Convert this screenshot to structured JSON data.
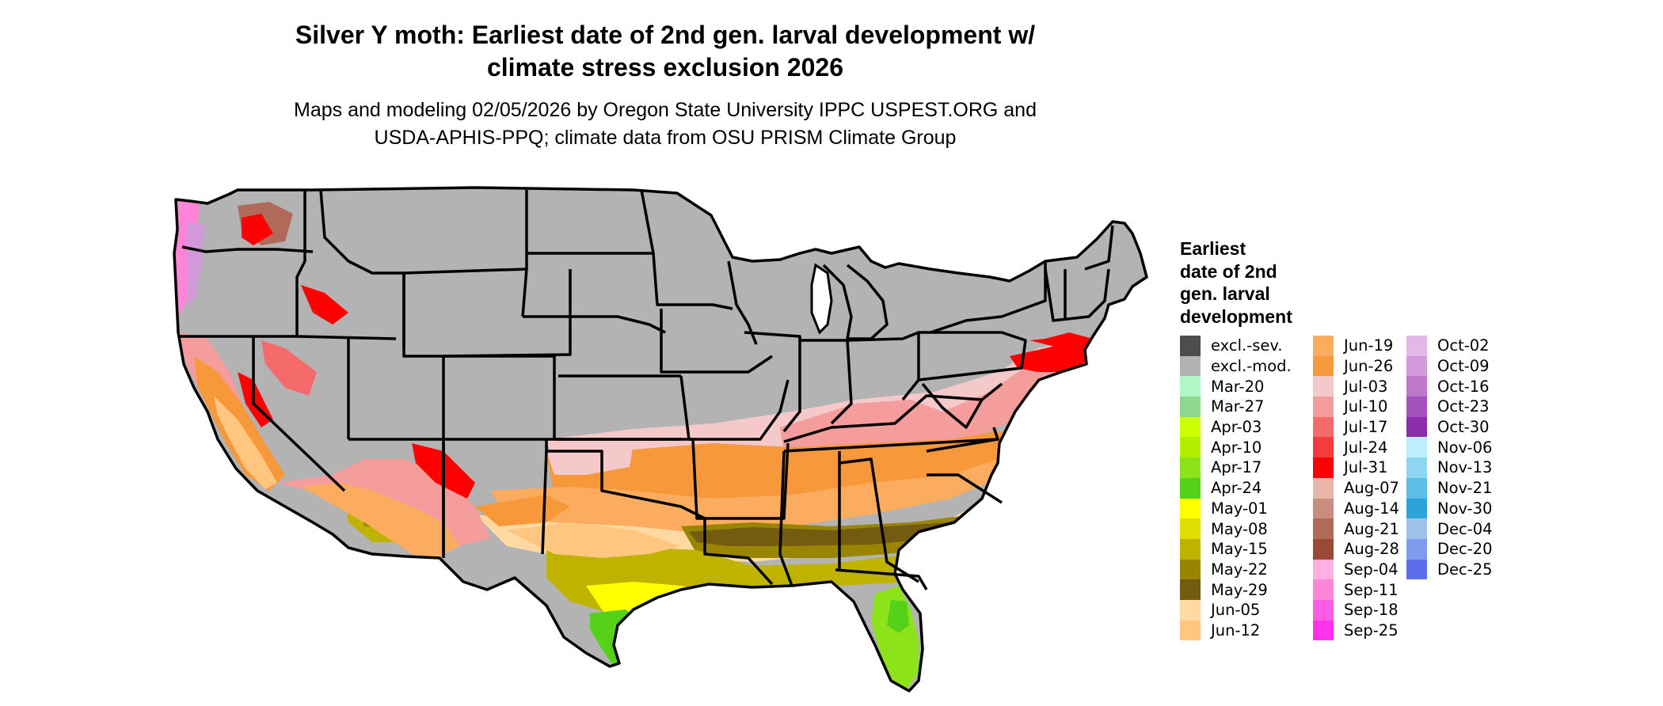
{
  "title_line1": "Silver Y moth: Earliest date of 2nd gen. larval development w/",
  "title_line2": "climate stress exclusion 2026",
  "subtitle_line1": "Maps and modeling 02/05/2026 by Oregon State University IPPC USPEST.ORG and",
  "subtitle_line2": "USDA-APHIS-PPQ; climate data from OSU PRISM Climate Group",
  "legend": {
    "title": [
      "Earliest",
      "date of 2nd",
      "gen. larval",
      "development"
    ],
    "columns": [
      [
        {
          "label": "excl.-sev.",
          "color": "#4d4d4d"
        },
        {
          "label": "excl.-mod.",
          "color": "#b3b3b3"
        },
        {
          "label": "Mar-20",
          "color": "#b2f5c6"
        },
        {
          "label": "Mar-27",
          "color": "#8fd68f"
        },
        {
          "label": "Apr-03",
          "color": "#ccff00"
        },
        {
          "label": "Apr-10",
          "color": "#b3f000"
        },
        {
          "label": "Apr-17",
          "color": "#8de31a"
        },
        {
          "label": "Apr-24",
          "color": "#55d11a"
        },
        {
          "label": "May-01",
          "color": "#ffff00"
        },
        {
          "label": "May-08",
          "color": "#dede00"
        },
        {
          "label": "May-15",
          "color": "#bfb300"
        },
        {
          "label": "May-22",
          "color": "#998500"
        },
        {
          "label": "May-29",
          "color": "#735c0f"
        },
        {
          "label": "Jun-05",
          "color": "#ffd9a1"
        },
        {
          "label": "Jun-12",
          "color": "#ffc680"
        }
      ],
      [
        {
          "label": "Jun-19",
          "color": "#fcac5e"
        },
        {
          "label": "Jun-26",
          "color": "#f7993a"
        },
        {
          "label": "Jul-03",
          "color": "#f5c9c9"
        },
        {
          "label": "Jul-10",
          "color": "#f59c9c"
        },
        {
          "label": "Jul-17",
          "color": "#f56b6b"
        },
        {
          "label": "Jul-24",
          "color": "#f53b3b"
        },
        {
          "label": "Jul-31",
          "color": "#ff0000"
        },
        {
          "label": "Aug-07",
          "color": "#e8b5a8"
        },
        {
          "label": "Aug-14",
          "color": "#c98d80"
        },
        {
          "label": "Aug-21",
          "color": "#b06a5a"
        },
        {
          "label": "Aug-28",
          "color": "#9c4a38"
        },
        {
          "label": "Sep-04",
          "color": "#ffb0e0"
        },
        {
          "label": "Sep-11",
          "color": "#ff85d8"
        },
        {
          "label": "Sep-18",
          "color": "#ff5ce6"
        },
        {
          "label": "Sep-25",
          "color": "#ff33ee"
        }
      ],
      [
        {
          "label": "Oct-02",
          "color": "#e3b8e8"
        },
        {
          "label": "Oct-09",
          "color": "#d199d9"
        },
        {
          "label": "Oct-16",
          "color": "#bd78cc"
        },
        {
          "label": "Oct-23",
          "color": "#a352bd"
        },
        {
          "label": "Oct-30",
          "color": "#8c2eab"
        },
        {
          "label": "Nov-06",
          "color": "#bdeeff"
        },
        {
          "label": "Nov-13",
          "color": "#8fd6f0"
        },
        {
          "label": "Nov-21",
          "color": "#5cbde6"
        },
        {
          "label": "Nov-30",
          "color": "#2ea3d9"
        },
        {
          "label": "Dec-04",
          "color": "#a1c2eb"
        },
        {
          "label": "Dec-20",
          "color": "#7d9ceb"
        },
        {
          "label": "Dec-25",
          "color": "#5c6eeb"
        }
      ]
    ]
  },
  "colors": {
    "excluded": "#b3b3b3",
    "excluded_severe": "#4d4d4d",
    "state_border": "#000000"
  }
}
